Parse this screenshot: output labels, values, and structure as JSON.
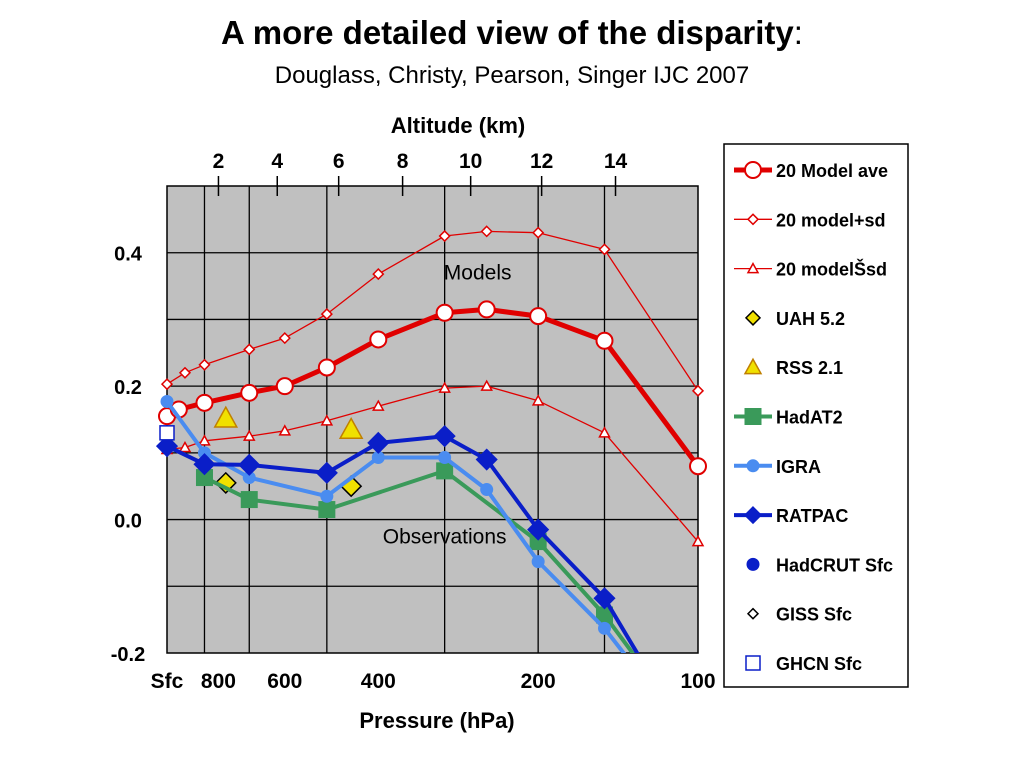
{
  "slide": {
    "title_bold": "A more detailed view of the disparity",
    "title_colon": ":",
    "subtitle": "Douglass, Christy, Pearson, Singer IJC 2007"
  },
  "chart_data": {
    "type": "line",
    "title": "",
    "xlabel": "Pressure (hPa)",
    "ylabel": "",
    "top_axis_label": "Altitude (km)",
    "x_scale": "log-pressure (reversed)",
    "ylim": [
      -0.2,
      0.5
    ],
    "yticks": [
      0.4,
      0.2,
      0.0,
      -0.2
    ],
    "ytick_labels": [
      "0.4",
      "0.2",
      "0.0",
      "-0.2"
    ],
    "bottom_ticks": [
      {
        "label": "Sfc",
        "p": 1000
      },
      {
        "label": "800",
        "p": 800
      },
      {
        "label": "600",
        "p": 600
      },
      {
        "label": "400",
        "p": 400
      },
      {
        "label": "200",
        "p": 200
      },
      {
        "label": "100",
        "p": 100
      }
    ],
    "top_ticks": [
      {
        "label": "2",
        "p": 800
      },
      {
        "label": "4",
        "p": 620
      },
      {
        "label": "6",
        "p": 475
      },
      {
        "label": "8",
        "p": 360
      },
      {
        "label": "10",
        "p": 268
      },
      {
        "label": "12",
        "p": 197
      },
      {
        "label": "14",
        "p": 143
      }
    ],
    "vertical_gridlines_p": [
      850,
      700,
      500,
      300,
      200,
      150
    ],
    "horizontal_grid": true,
    "plot_background": "#c0c0c0",
    "annotations": [
      {
        "text": "Models",
        "p": 260,
        "y": 0.37
      },
      {
        "text": "Observations",
        "p": 300,
        "y": -0.025
      }
    ],
    "series": [
      {
        "name": "20 Model ave",
        "color": "#e00000",
        "marker": "circle-open",
        "line_width": "thick",
        "points": [
          [
            1000,
            0.155
          ],
          [
            950,
            0.165
          ],
          [
            850,
            0.175
          ],
          [
            700,
            0.19
          ],
          [
            600,
            0.2
          ],
          [
            500,
            0.228
          ],
          [
            400,
            0.27
          ],
          [
            300,
            0.31
          ],
          [
            250,
            0.315
          ],
          [
            200,
            0.305
          ],
          [
            150,
            0.268
          ],
          [
            100,
            0.08
          ]
        ]
      },
      {
        "name": "20 model+sd",
        "color": "#e00000",
        "marker": "diamond-open",
        "line_width": "thin",
        "points": [
          [
            1000,
            0.203
          ],
          [
            925,
            0.22
          ],
          [
            850,
            0.232
          ],
          [
            700,
            0.255
          ],
          [
            600,
            0.272
          ],
          [
            500,
            0.308
          ],
          [
            400,
            0.368
          ],
          [
            300,
            0.425
          ],
          [
            250,
            0.432
          ],
          [
            200,
            0.43
          ],
          [
            150,
            0.405
          ],
          [
            100,
            0.193
          ]
        ]
      },
      {
        "name": "20 modelŠsd",
        "color": "#e00000",
        "marker": "triangle-open",
        "line_width": "thin",
        "points": [
          [
            1000,
            0.105
          ],
          [
            925,
            0.108
          ],
          [
            850,
            0.118
          ],
          [
            700,
            0.125
          ],
          [
            600,
            0.133
          ],
          [
            500,
            0.148
          ],
          [
            400,
            0.17
          ],
          [
            300,
            0.197
          ],
          [
            250,
            0.2
          ],
          [
            200,
            0.178
          ],
          [
            150,
            0.13
          ],
          [
            100,
            -0.033
          ]
        ]
      },
      {
        "name": "UAH 5.2",
        "color": "#f0e000",
        "marker": "diamond-filled",
        "line_width": "none",
        "points": [
          [
            775,
            0.055
          ],
          [
            450,
            0.05
          ]
        ]
      },
      {
        "name": "RSS 2.1",
        "color": "#f0e000",
        "marker": "triangle-filled",
        "line_width": "none",
        "points": [
          [
            775,
            0.152
          ],
          [
            450,
            0.135
          ]
        ]
      },
      {
        "name": "HadAT2",
        "color": "#3a9a5a",
        "marker": "square-filled",
        "line_width": "medium",
        "points": [
          [
            850,
            0.063
          ],
          [
            700,
            0.03
          ],
          [
            500,
            0.015
          ],
          [
            300,
            0.073
          ],
          [
            200,
            -0.033
          ],
          [
            150,
            -0.143
          ],
          [
            130,
            -0.21
          ]
        ]
      },
      {
        "name": "IGRA",
        "color": "#4a8cf0",
        "marker": "circle-filled",
        "line_width": "medium",
        "points": [
          [
            1000,
            0.177
          ],
          [
            850,
            0.1
          ],
          [
            700,
            0.063
          ],
          [
            500,
            0.035
          ],
          [
            400,
            0.093
          ],
          [
            300,
            0.093
          ],
          [
            250,
            0.045
          ],
          [
            200,
            -0.063
          ],
          [
            150,
            -0.163
          ],
          [
            135,
            -0.21
          ]
        ]
      },
      {
        "name": "RATPAC",
        "color": "#0a1ec8",
        "marker": "diamond-filled",
        "line_width": "medium",
        "points": [
          [
            1000,
            0.11
          ],
          [
            850,
            0.083
          ],
          [
            700,
            0.082
          ],
          [
            500,
            0.07
          ],
          [
            400,
            0.115
          ],
          [
            300,
            0.125
          ],
          [
            250,
            0.09
          ],
          [
            200,
            -0.015
          ],
          [
            150,
            -0.118
          ],
          [
            128,
            -0.21
          ]
        ]
      },
      {
        "name": "HadCRUT Sfc",
        "color": "#0a1ec8",
        "marker": "circle-filled",
        "line_width": "none",
        "points": []
      },
      {
        "name": "GISS Sfc",
        "color": "#000000",
        "marker": "diamond-open",
        "line_width": "none",
        "points": []
      },
      {
        "name": "GHCN Sfc",
        "color": "#0a1ec8",
        "marker": "square-open",
        "line_width": "none",
        "points": [
          [
            1000,
            0.13
          ]
        ]
      }
    ],
    "legend_position": "right"
  }
}
